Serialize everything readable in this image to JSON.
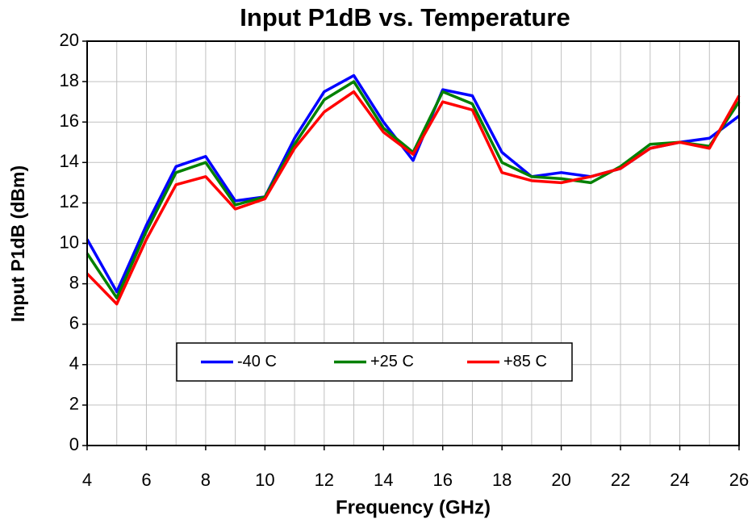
{
  "chart_data": {
    "type": "line",
    "title": "Input P1dB vs. Temperature",
    "x_label": "Frequency (GHz)",
    "y_label": "Input P1dB (dBm)",
    "x": [
      4,
      5,
      6,
      7,
      8,
      9,
      10,
      11,
      12,
      13,
      14,
      15,
      16,
      17,
      18,
      19,
      20,
      21,
      22,
      23,
      24,
      25,
      26
    ],
    "series": [
      {
        "name": "-40 C",
        "color": "#0000ff",
        "values": [
          10.2,
          7.6,
          10.9,
          13.8,
          14.3,
          12.1,
          12.3,
          15.2,
          17.5,
          18.3,
          16.0,
          14.1,
          17.6,
          17.3,
          14.5,
          13.3,
          13.5,
          13.3,
          13.7,
          14.7,
          15.0,
          15.2,
          16.3
        ]
      },
      {
        "name": "+25 C",
        "color": "#008000",
        "values": [
          9.5,
          7.3,
          10.6,
          13.5,
          14.0,
          11.9,
          12.3,
          14.9,
          17.1,
          18.0,
          15.7,
          14.5,
          17.5,
          16.9,
          14.0,
          13.3,
          13.2,
          13.0,
          13.8,
          14.9,
          15.0,
          14.8,
          17.0
        ]
      },
      {
        "name": "+85 C",
        "color": "#ff0000",
        "values": [
          8.5,
          7.0,
          10.2,
          12.9,
          13.3,
          11.7,
          12.2,
          14.7,
          16.5,
          17.5,
          15.5,
          14.4,
          17.0,
          16.6,
          13.5,
          13.1,
          13.0,
          13.3,
          13.7,
          14.7,
          15.0,
          14.7,
          17.3
        ]
      }
    ],
    "xlim": [
      4,
      26
    ],
    "xticks": [
      4,
      6,
      8,
      10,
      12,
      14,
      16,
      18,
      20,
      22,
      24,
      26
    ],
    "ylim": [
      0,
      20
    ],
    "yticks": [
      0,
      2,
      4,
      6,
      8,
      10,
      12,
      14,
      16,
      18,
      20
    ],
    "grid": true,
    "legend": "lower center"
  }
}
